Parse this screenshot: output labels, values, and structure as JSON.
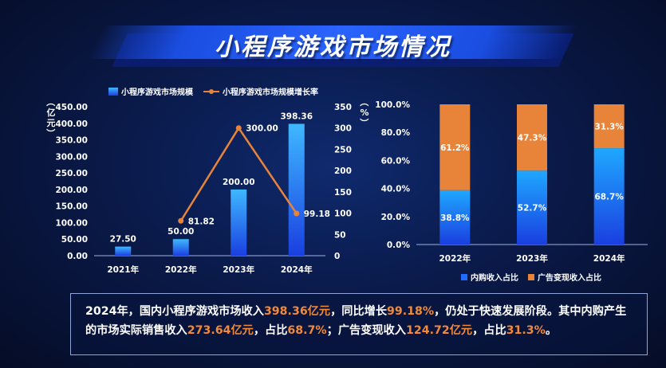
{
  "header": {
    "title": "小程序游戏市场情况"
  },
  "colors": {
    "bar": "#1e6dff",
    "bar_top": "#3fb8ff",
    "line": "#e8843a",
    "seg_inner": "#1e6dff",
    "seg_ad": "#e8843a"
  },
  "chart_data": [
    {
      "type": "bar",
      "categories": [
        "2021年",
        "2022年",
        "2023年",
        "2024年"
      ],
      "series": [
        {
          "name": "小程序游戏市场规模",
          "values": [
            27.5,
            50.0,
            200.0,
            398.36
          ],
          "labels": [
            "27.50",
            "50.00",
            "200.00",
            "398.36"
          ]
        },
        {
          "name": "小程序游戏市场规模增长率",
          "type": "line",
          "axis": "right",
          "values": [
            null,
            81.82,
            300.0,
            99.18
          ],
          "labels": [
            "",
            "81.82",
            "300.00",
            "99.18"
          ]
        }
      ],
      "ylabel": "（亿元）",
      "ylabel_right": "（%）",
      "ylim": [
        0,
        450
      ],
      "yticks": [
        "0.00",
        "50.00",
        "100.00",
        "150.00",
        "200.00",
        "250.00",
        "300.00",
        "350.00",
        "400.00",
        "450.00"
      ],
      "ylim_right": [
        0,
        350
      ],
      "yticks_right": [
        "0",
        "50",
        "100",
        "150",
        "200",
        "250",
        "300",
        "350"
      ],
      "legend": "top"
    },
    {
      "type": "bar",
      "stacked": true,
      "categories": [
        "2022年",
        "2023年",
        "2024年"
      ],
      "series": [
        {
          "name": "内购收入占比",
          "values": [
            38.8,
            52.7,
            68.7
          ],
          "labels": [
            "38.8%",
            "52.7%",
            "68.7%"
          ]
        },
        {
          "name": "广告变现收入占比",
          "values": [
            61.2,
            47.3,
            31.3
          ],
          "labels": [
            "61.2%",
            "47.3%",
            "31.3%"
          ]
        }
      ],
      "ylim": [
        0,
        100
      ],
      "yticks": [
        "0.0%",
        "20.0%",
        "40.0%",
        "60.0%",
        "80.0%",
        "100.0%"
      ],
      "legend": "bottom"
    }
  ],
  "note": {
    "parts": [
      "2024年，国内小程序游戏市场收入",
      "398.36亿元",
      "，同比增长",
      "99.18%",
      "，仍处于快速发展阶段。其中内购产生的市场实际销售收入",
      "273.64亿元",
      "，占比",
      "68.7%",
      "；广告变现收入",
      "124.72亿元",
      "，占比",
      "31.3%",
      "。"
    ]
  }
}
